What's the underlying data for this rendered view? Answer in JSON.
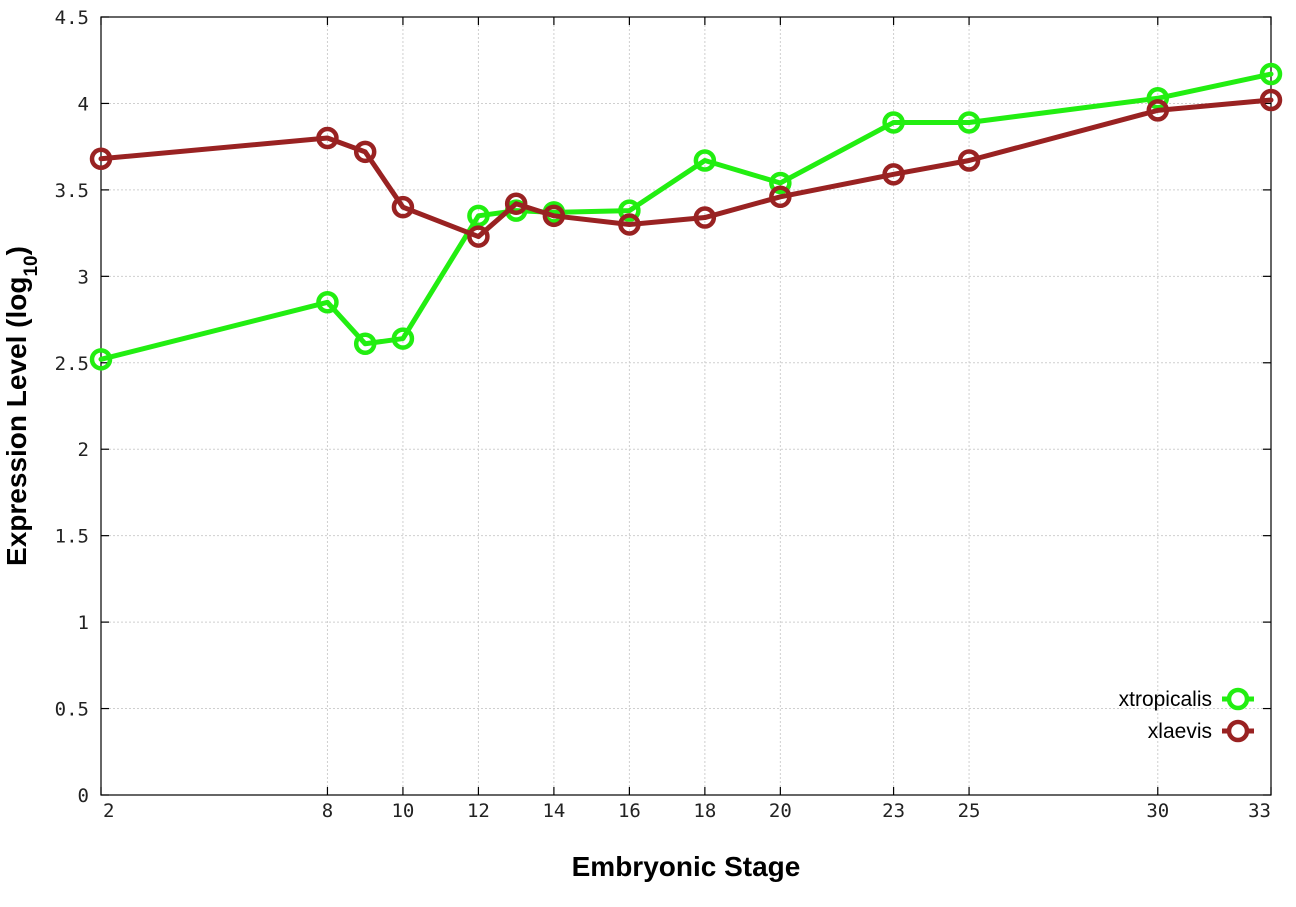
{
  "chart_data": {
    "type": "line",
    "title": "",
    "xlabel": "Embryonic Stage",
    "ylabel_main": "Expression Level (log",
    "ylabel_sub": "10",
    "ylabel_close": ")",
    "xlim": [
      2,
      33
    ],
    "ylim": [
      0,
      4.5
    ],
    "x_ticks": [
      2,
      8,
      10,
      12,
      14,
      16,
      18,
      20,
      23,
      25,
      30,
      33
    ],
    "y_ticks": [
      {
        "v": 0,
        "label": "0"
      },
      {
        "v": 0.5,
        "label": "0.5"
      },
      {
        "v": 1,
        "label": "1"
      },
      {
        "v": 1.5,
        "label": "1.5"
      },
      {
        "v": 2,
        "label": "2"
      },
      {
        "v": 2.5,
        "label": "2.5"
      },
      {
        "v": 3,
        "label": "3"
      },
      {
        "v": 3.5,
        "label": "3.5"
      },
      {
        "v": 4,
        "label": "4"
      },
      {
        "v": 4.5,
        "label": "4.5"
      }
    ],
    "grid": true,
    "legend_position": "bottom-right",
    "series": [
      {
        "name": "xtropicalis",
        "color": "#22ee11",
        "x": [
          2,
          8,
          9,
          10,
          12,
          13,
          14,
          16,
          18,
          20,
          23,
          25,
          30,
          33
        ],
        "y": [
          2.52,
          2.85,
          2.61,
          2.64,
          3.35,
          3.38,
          3.37,
          3.38,
          3.67,
          3.54,
          3.89,
          3.89,
          4.03,
          4.17
        ]
      },
      {
        "name": "xlaevis",
        "color": "#992222",
        "x": [
          2,
          8,
          9,
          10,
          12,
          13,
          14,
          16,
          18,
          20,
          23,
          25,
          30,
          33
        ],
        "y": [
          3.68,
          3.8,
          3.72,
          3.4,
          3.23,
          3.42,
          3.35,
          3.3,
          3.34,
          3.46,
          3.59,
          3.67,
          3.96,
          4.02
        ]
      }
    ]
  }
}
